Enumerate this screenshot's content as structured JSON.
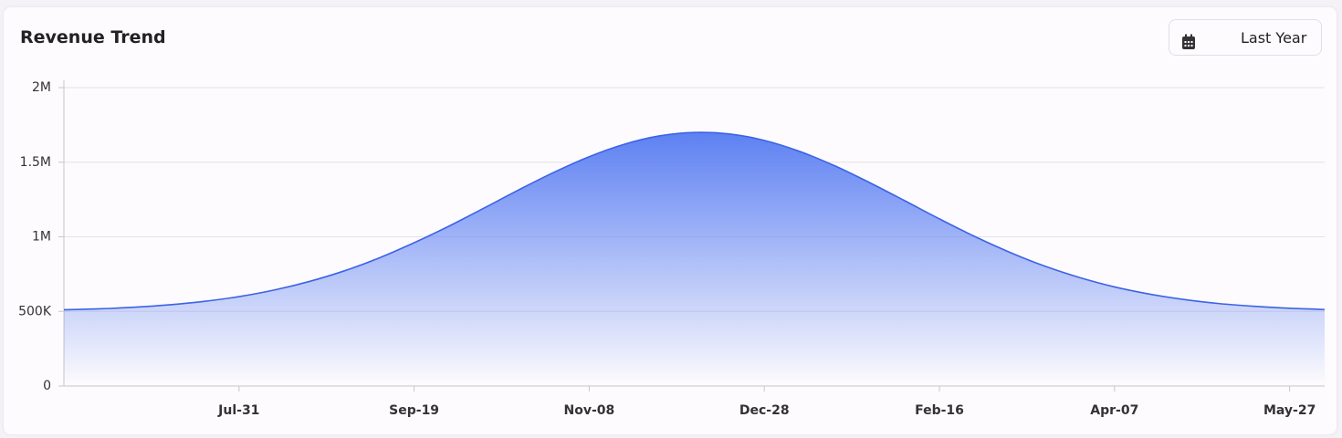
{
  "range_selector": "Last Year",
  "chart_data": {
    "type": "area",
    "title": "Revenue Trend",
    "categories": [
      null,
      null,
      null,
      null,
      null,
      "Jul-31",
      null,
      null,
      null,
      null,
      "Sep-19",
      null,
      null,
      null,
      null,
      "Nov-08",
      null,
      null,
      null,
      null,
      "Dec-28",
      null,
      null,
      null,
      null,
      "Feb-16",
      null,
      null,
      null,
      null,
      "Apr-07",
      null,
      null,
      null,
      null,
      "May-27",
      null
    ],
    "series": [
      {
        "name": "Revenue",
        "color": "#3b63e6",
        "values": [
          511000,
          517000,
          528000,
          544000,
          567000,
          599000,
          643000,
          700000,
          771000,
          858000,
          960000,
          1072000,
          1193000,
          1316000,
          1433000,
          1537000,
          1620000,
          1676000,
          1699000,
          1689000,
          1646000,
          1573000,
          1477000,
          1364000,
          1243000,
          1120000,
          1003000,
          897000,
          804000,
          727000,
          664000,
          616000,
          579000,
          552000,
          534000,
          521000,
          513000
        ]
      }
    ],
    "ylim": [
      0,
      2000000
    ],
    "yticks": [
      0,
      {
        "value": 500000,
        "label": "500K"
      },
      {
        "value": 1000000,
        "label": "1M"
      },
      {
        "value": 1500000,
        "label": "1.5M"
      },
      {
        "value": 2000000,
        "label": "2M"
      }
    ],
    "grid": true
  }
}
